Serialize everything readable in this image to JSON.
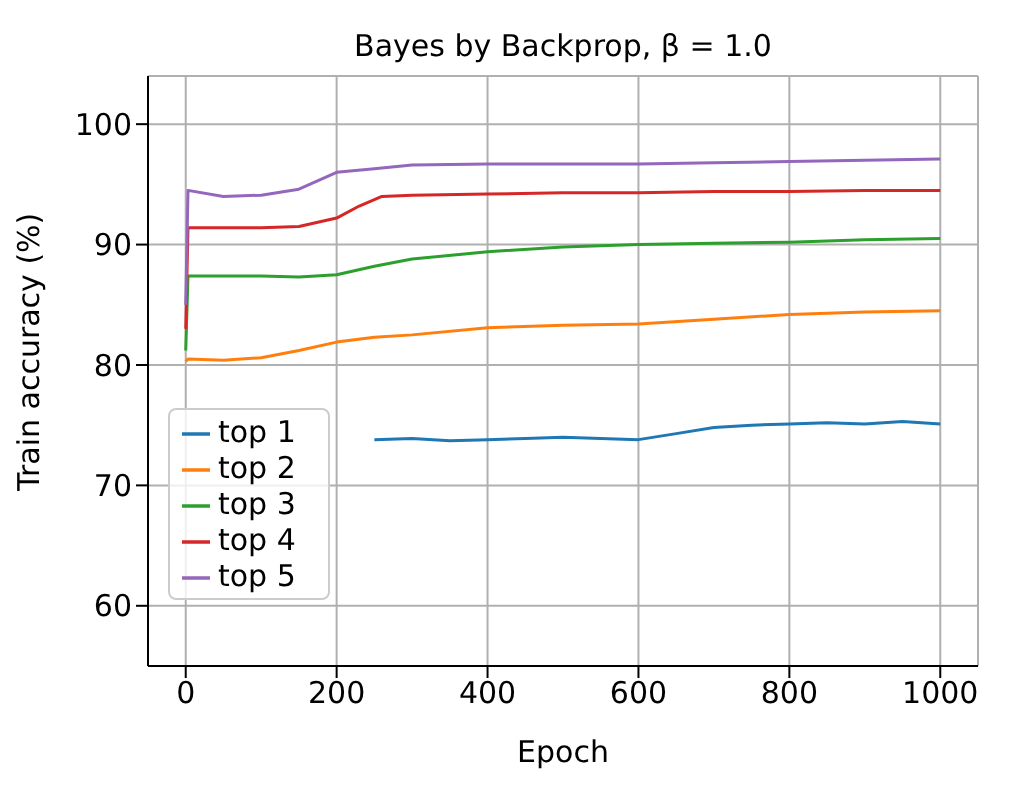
{
  "chart_data": {
    "type": "line",
    "title": "Bayes by Backprop, β = 1.0",
    "xlabel": "Epoch",
    "ylabel": "Train accuracy (%)",
    "xlim": [
      -50,
      1050
    ],
    "xticks": [
      0,
      200,
      400,
      600,
      800,
      1000
    ],
    "ylim": [
      55,
      104
    ],
    "yticks": [
      60,
      70,
      80,
      90,
      100
    ],
    "grid": true,
    "legend": "bottom left",
    "series": [
      {
        "name": "top 1",
        "color": "#1f77b4",
        "x": [
          250,
          300,
          350,
          400,
          450,
          500,
          550,
          600,
          650,
          700,
          750,
          800,
          850,
          900,
          950,
          1000
        ],
        "values": [
          73.8,
          73.9,
          73.7,
          73.8,
          73.9,
          74.0,
          73.9,
          73.8,
          74.3,
          74.8,
          75.0,
          75.1,
          75.2,
          75.1,
          75.3,
          75.1
        ]
      },
      {
        "name": "top 2",
        "color": "#ff7f0e",
        "x": [
          0,
          3,
          50,
          100,
          150,
          200,
          250,
          300,
          400,
          500,
          600,
          700,
          800,
          900,
          1000
        ],
        "values": [
          80.3,
          80.5,
          80.4,
          80.6,
          81.2,
          81.9,
          82.3,
          82.5,
          83.1,
          83.3,
          83.4,
          83.8,
          84.2,
          84.4,
          84.5
        ]
      },
      {
        "name": "top 3",
        "color": "#2ca02c",
        "x": [
          0,
          3,
          50,
          100,
          150,
          200,
          250,
          300,
          400,
          500,
          600,
          700,
          800,
          900,
          1000
        ],
        "values": [
          81.2,
          87.4,
          87.4,
          87.4,
          87.3,
          87.5,
          88.2,
          88.8,
          89.4,
          89.8,
          90.0,
          90.1,
          90.2,
          90.4,
          90.5
        ]
      },
      {
        "name": "top 4",
        "color": "#d62728",
        "x": [
          0,
          3,
          50,
          100,
          150,
          200,
          230,
          260,
          300,
          400,
          500,
          600,
          700,
          800,
          900,
          1000
        ],
        "values": [
          83.0,
          91.4,
          91.4,
          91.4,
          91.5,
          92.2,
          93.2,
          94.0,
          94.1,
          94.2,
          94.3,
          94.3,
          94.4,
          94.4,
          94.5,
          94.5
        ]
      },
      {
        "name": "top 5",
        "color": "#9467bd",
        "x": [
          0,
          3,
          50,
          100,
          150,
          200,
          250,
          300,
          400,
          500,
          600,
          700,
          800,
          900,
          1000
        ],
        "values": [
          85.0,
          94.5,
          94.0,
          94.1,
          94.6,
          96.0,
          96.3,
          96.6,
          96.7,
          96.7,
          96.7,
          96.8,
          96.9,
          97.0,
          97.1
        ]
      }
    ]
  }
}
